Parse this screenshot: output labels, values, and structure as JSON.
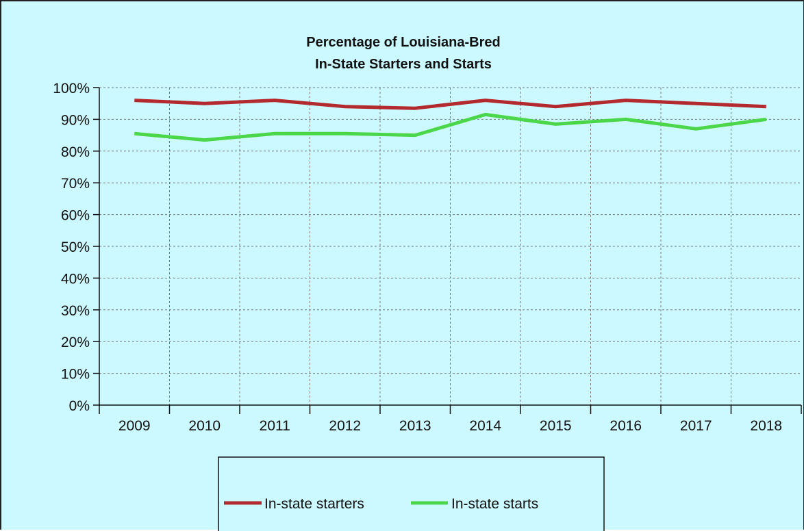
{
  "chart_data": {
    "type": "line",
    "title": "Percentage of Louisiana-Bred",
    "subtitle": "In-State Starters and Starts",
    "xlabel": "",
    "ylabel": "",
    "categories": [
      "2009",
      "2010",
      "2011",
      "2012",
      "2013",
      "2014",
      "2015",
      "2016",
      "2017",
      "2018"
    ],
    "ylim": [
      0,
      100
    ],
    "yticks": [
      "0%",
      "10%",
      "20%",
      "30%",
      "40%",
      "50%",
      "60%",
      "70%",
      "80%",
      "90%",
      "100%"
    ],
    "series": [
      {
        "name": "In-state starters",
        "color": "#b22a2e",
        "values": [
          96,
          95,
          96,
          94,
          93.5,
          96,
          94,
          96,
          95,
          94
        ]
      },
      {
        "name": "In-state starts",
        "color": "#4cd64a",
        "values": [
          85.5,
          83.5,
          85.5,
          85.5,
          85,
          91.5,
          88.5,
          90,
          87,
          90
        ]
      }
    ],
    "grid": true,
    "legend_position": "bottom"
  },
  "colors": {
    "background": "#ccf9ff",
    "grid": "#777777",
    "axis": "#111111"
  }
}
